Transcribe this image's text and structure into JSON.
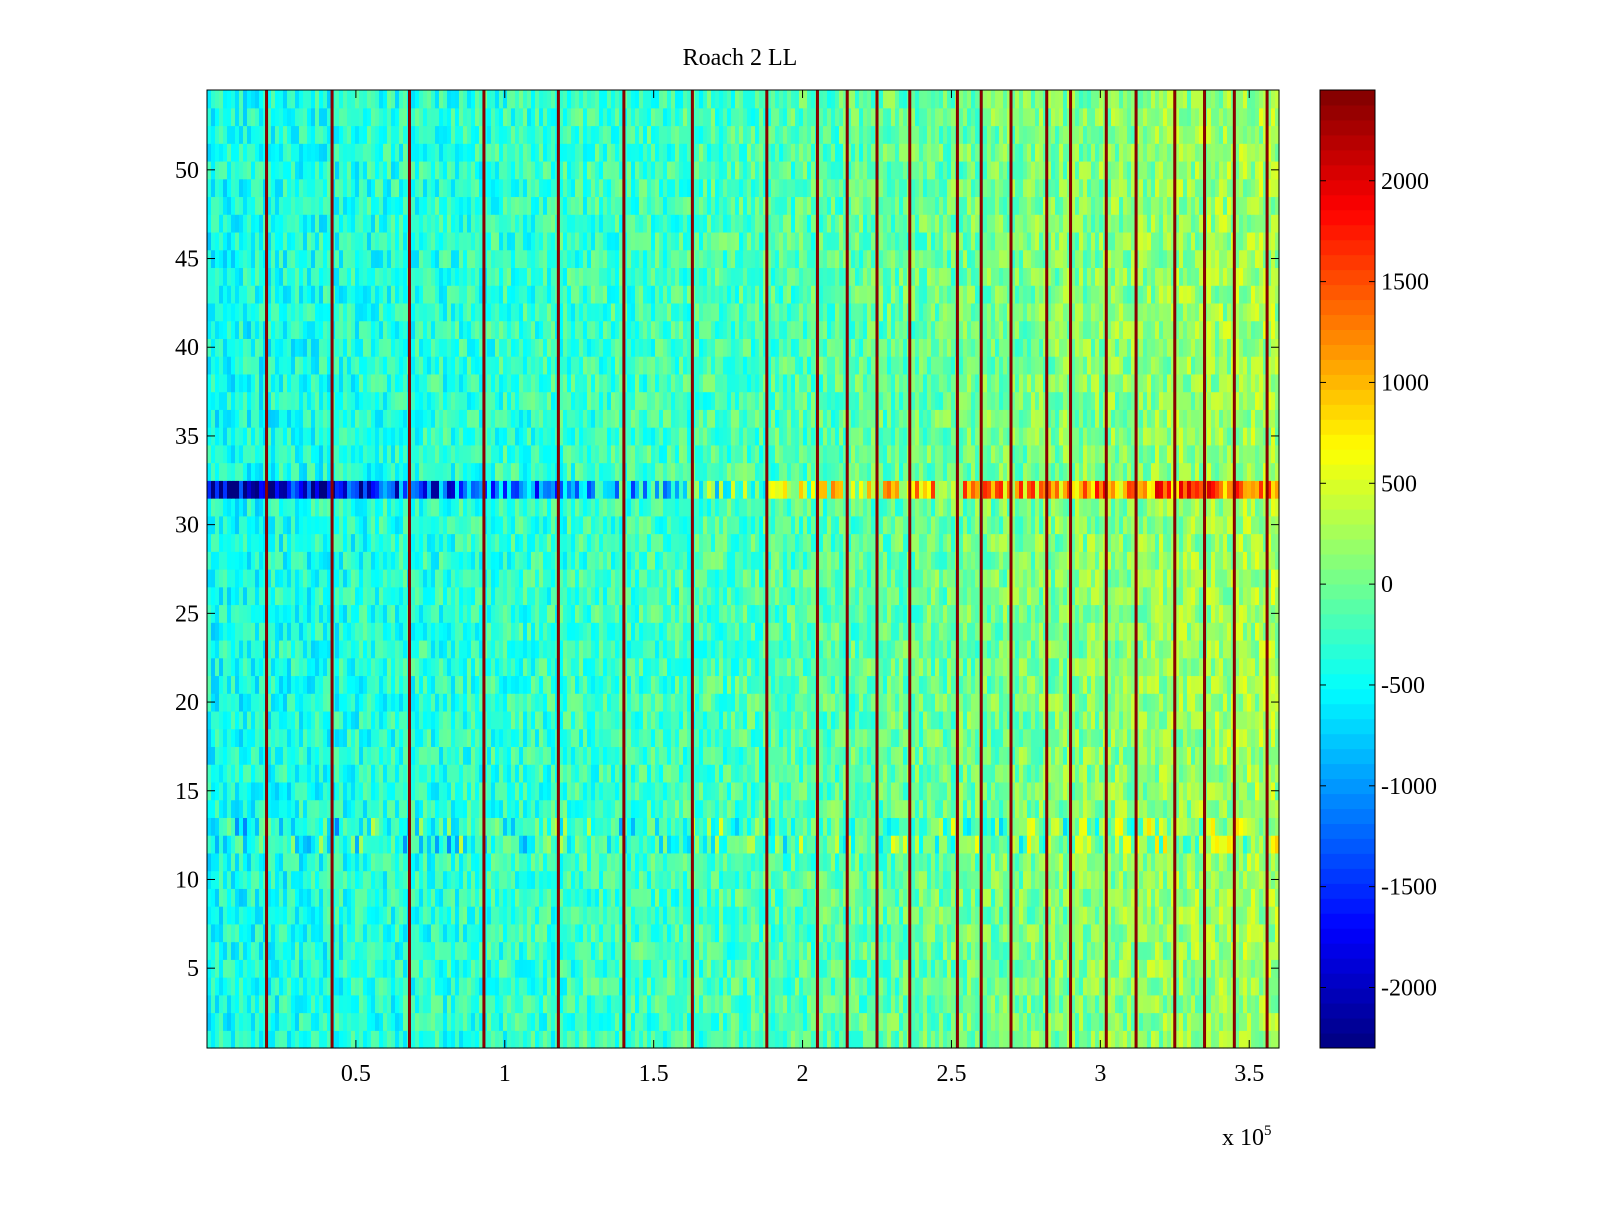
{
  "chart_data": {
    "type": "heatmap",
    "title": "Roach 2 LL",
    "xlabel": "",
    "ylabel": "",
    "x_multiplier_label": "x 10",
    "x_multiplier_exponent": "5",
    "xlim": [
      0,
      360000
    ],
    "ylim": [
      0.5,
      54.5
    ],
    "x_ticks": [
      50000,
      100000,
      150000,
      200000,
      250000,
      300000,
      350000
    ],
    "x_tick_labels": [
      "0.5",
      "1",
      "1.5",
      "2",
      "2.5",
      "3",
      "3.5"
    ],
    "y_ticks": [
      5,
      10,
      15,
      20,
      25,
      30,
      35,
      40,
      45,
      50
    ],
    "y_tick_labels": [
      "5",
      "10",
      "15",
      "20",
      "25",
      "30",
      "35",
      "40",
      "45",
      "50"
    ],
    "colormap": "jet",
    "clim": [
      -2300,
      2450
    ],
    "colorbar_ticks": [
      -2000,
      -1500,
      -1000,
      -500,
      0,
      500,
      1000,
      1500,
      2000
    ],
    "colorbar_tick_labels": [
      "-2000",
      "-1500",
      "-1000",
      "-500",
      "0",
      "500",
      "1000",
      "1500",
      "2000"
    ],
    "rows": 54,
    "description_of_values": {
      "background_trend": {
        "x": [
          0,
          200000,
          360000
        ],
        "value": [
          -450,
          -150,
          250
        ]
      },
      "hot_row": 32,
      "hot_row_values": {
        "x": [
          0,
          67000,
          150000,
          220000,
          360000
        ],
        "value": [
          -2150,
          -1500,
          -600,
          700,
          1500
        ]
      },
      "disturbed_rows": [
        12,
        13
      ],
      "vertical_spike_x": [
        20000,
        42000,
        68000,
        93000,
        118000,
        140000,
        163000,
        188000,
        205000,
        215000,
        225000,
        236000,
        252000,
        260000,
        270000,
        282000,
        290000,
        302000,
        312000,
        325000,
        335000,
        345000,
        356000
      ],
      "vertical_spike_value": 2350
    }
  }
}
